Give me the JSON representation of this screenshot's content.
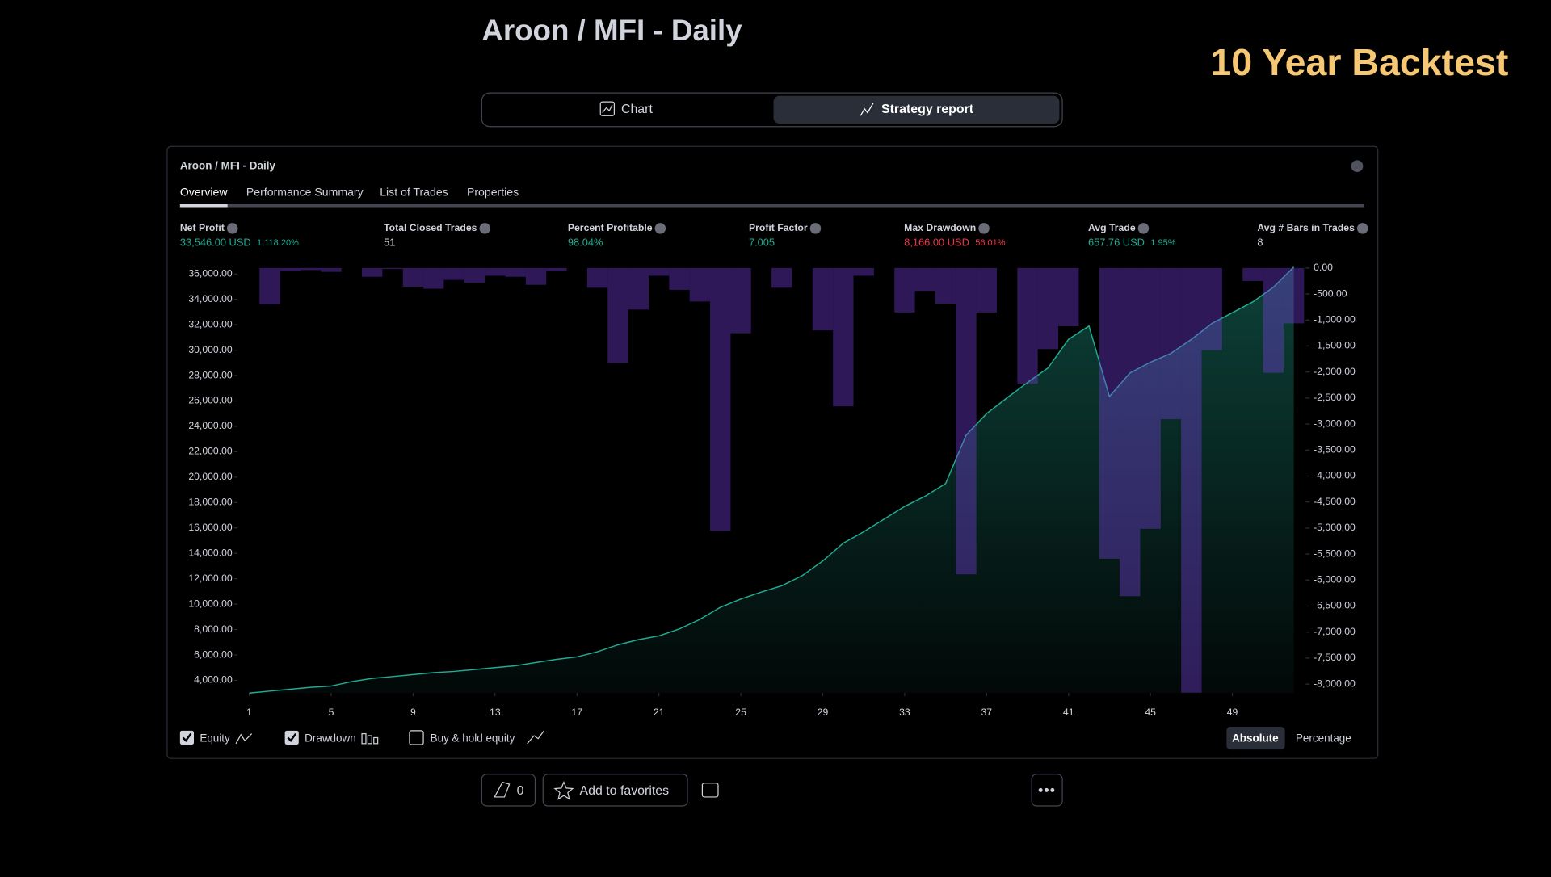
{
  "header": {
    "title": "Aroon / MFI - Daily",
    "banner": "10 Year Backtest"
  },
  "toggle": {
    "chart": "Chart",
    "report": "Strategy report"
  },
  "panel": {
    "title": "Aroon / MFI - Daily",
    "tabs": [
      "Overview",
      "Performance Summary",
      "List of Trades",
      "Properties"
    ],
    "stats": [
      {
        "label": "Net Profit",
        "value": "33,546.00 USD",
        "pct": "1,118.20%"
      },
      {
        "label": "Total Closed Trades",
        "value": "51"
      },
      {
        "label": "Percent Profitable",
        "value": "98.04%"
      },
      {
        "label": "Profit Factor",
        "value": "7.005"
      },
      {
        "label": "Max Drawdown",
        "value": "8,166.00 USD",
        "pct": "56.01%"
      },
      {
        "label": "Avg Trade",
        "value": "657.76 USD",
        "pct": "1.95%"
      },
      {
        "label": "Avg # Bars in Trades",
        "value": "8"
      }
    ],
    "controls": {
      "buy_hold": "Buy & hold equity",
      "absolute": "Absolute",
      "percentage": "Percentage"
    }
  },
  "chart_data": {
    "type": "combo",
    "x": [
      1,
      2,
      3,
      4,
      5,
      6,
      7,
      8,
      9,
      10,
      11,
      12,
      13,
      14,
      15,
      16,
      17,
      18,
      19,
      20,
      21,
      22,
      23,
      24,
      25,
      26,
      27,
      28,
      29,
      30,
      31,
      32,
      33,
      34,
      35,
      36,
      37,
      38,
      39,
      40,
      41,
      42,
      43,
      44,
      45,
      46,
      47,
      48,
      49,
      50,
      51,
      52
    ],
    "xlim": [
      0.42,
      52.58
    ],
    "xticks": [
      1,
      5,
      9,
      13,
      17,
      21,
      25,
      29,
      33,
      37,
      41,
      45,
      49
    ],
    "ylim": [
      2990,
      36470
    ],
    "yticks": [
      {
        "value": 4000,
        "label": "4,000.00"
      },
      {
        "value": 6000,
        "label": "6,000.00"
      },
      {
        "value": 8000,
        "label": "8,000.00"
      },
      {
        "value": 10000,
        "label": "10,000.00"
      },
      {
        "value": 12000,
        "label": "12,000.00"
      },
      {
        "value": 14000,
        "label": "14,000.00"
      },
      {
        "value": 16000,
        "label": "16,000.00"
      },
      {
        "value": 18000,
        "label": "18,000.00"
      },
      {
        "value": 20000,
        "label": "20,000.00"
      },
      {
        "value": 22000,
        "label": "22,000.00"
      },
      {
        "value": 24000,
        "label": "24,000.00"
      },
      {
        "value": 26000,
        "label": "26,000.00"
      },
      {
        "value": 28000,
        "label": "28,000.00"
      },
      {
        "value": 30000,
        "label": "30,000.00"
      },
      {
        "value": 32000,
        "label": "32,000.00"
      },
      {
        "value": 34000,
        "label": "34,000.00"
      },
      {
        "value": 36000,
        "label": "36,000.00"
      }
    ],
    "y2lim": [
      -8175,
      0
    ],
    "y2ticks": [
      {
        "value": 0,
        "label": "0.00"
      },
      {
        "value": -500,
        "label": "-500.00"
      },
      {
        "value": -1000,
        "label": "-1,000.00"
      },
      {
        "value": -1500,
        "label": "-1,500.00"
      },
      {
        "value": -2000,
        "label": "-2,000.00"
      },
      {
        "value": -2500,
        "label": "-2,500.00"
      },
      {
        "value": -3000,
        "label": "-3,000.00"
      },
      {
        "value": -3500,
        "label": "-3,500.00"
      },
      {
        "value": -4000,
        "label": "-4,000.00"
      },
      {
        "value": -4500,
        "label": "-4,500.00"
      },
      {
        "value": -5000,
        "label": "-5,000.00"
      },
      {
        "value": -5500,
        "label": "-5,500.00"
      },
      {
        "value": -6000,
        "label": "-6,000.00"
      },
      {
        "value": -6500,
        "label": "-6,500.00"
      },
      {
        "value": -7000,
        "label": "-7,000.00"
      },
      {
        "value": -7500,
        "label": "-7,500.00"
      },
      {
        "value": -8000,
        "label": "-8,000.00"
      }
    ],
    "series": [
      {
        "name": "Equity",
        "type": "area",
        "color": "#22ab94",
        "values": [
          3000,
          3150,
          3300,
          3450,
          3550,
          3900,
          4150,
          4300,
          4450,
          4600,
          4700,
          4850,
          5000,
          5150,
          5400,
          5650,
          5850,
          6250,
          6800,
          7200,
          7500,
          8050,
          8800,
          9750,
          10400,
          10950,
          11450,
          12250,
          13400,
          14800,
          15700,
          16700,
          17700,
          18500,
          19500,
          23300,
          25000,
          26250,
          27450,
          28600,
          30850,
          31900,
          26350,
          28200,
          29050,
          29750,
          30850,
          32100,
          32950,
          33800,
          34950,
          36546
        ]
      },
      {
        "name": "Drawdown",
        "type": "bar",
        "axis": "y2",
        "color": "#7b40e6",
        "values": [
          0,
          -700,
          -60,
          -40,
          -75,
          0,
          -170,
          -20,
          -360,
          -400,
          -230,
          -285,
          -150,
          -170,
          -325,
          -60,
          0,
          -380,
          -1825,
          -800,
          -150,
          -420,
          -645,
          -5055,
          -1255,
          0,
          -380,
          0,
          -1200,
          -2660,
          -150,
          0,
          -855,
          -440,
          -685,
          -5890,
          -855,
          0,
          -2225,
          -1560,
          -1120,
          0,
          -5590,
          -6310,
          -5015,
          -2905,
          -8166,
          -1580,
          0,
          -250,
          -2015,
          -1065
        ]
      }
    ]
  },
  "footer": {
    "boosts": "0",
    "favorites": "Add to favorites"
  }
}
